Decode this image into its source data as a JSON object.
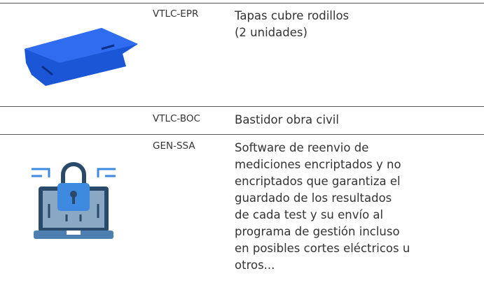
{
  "table": {
    "rows": [
      {
        "code": "VTLC-EPR",
        "description": [
          "Tapas cubre rodillos",
          "(2 unidades)"
        ]
      },
      {
        "code": "VTLC-BOC",
        "description": [
          "Bastidor obra civil"
        ]
      },
      {
        "code": "GEN-SSA",
        "description": [
          "Software de reenvio de",
          "mediciones encriptados y no",
          "encriptados que garantiza el",
          "guardado de los resultados",
          "de cada test y su envío al",
          "programa de gestión incluso",
          "en posibles cortes eléctricos u",
          "otros..."
        ]
      }
    ]
  }
}
